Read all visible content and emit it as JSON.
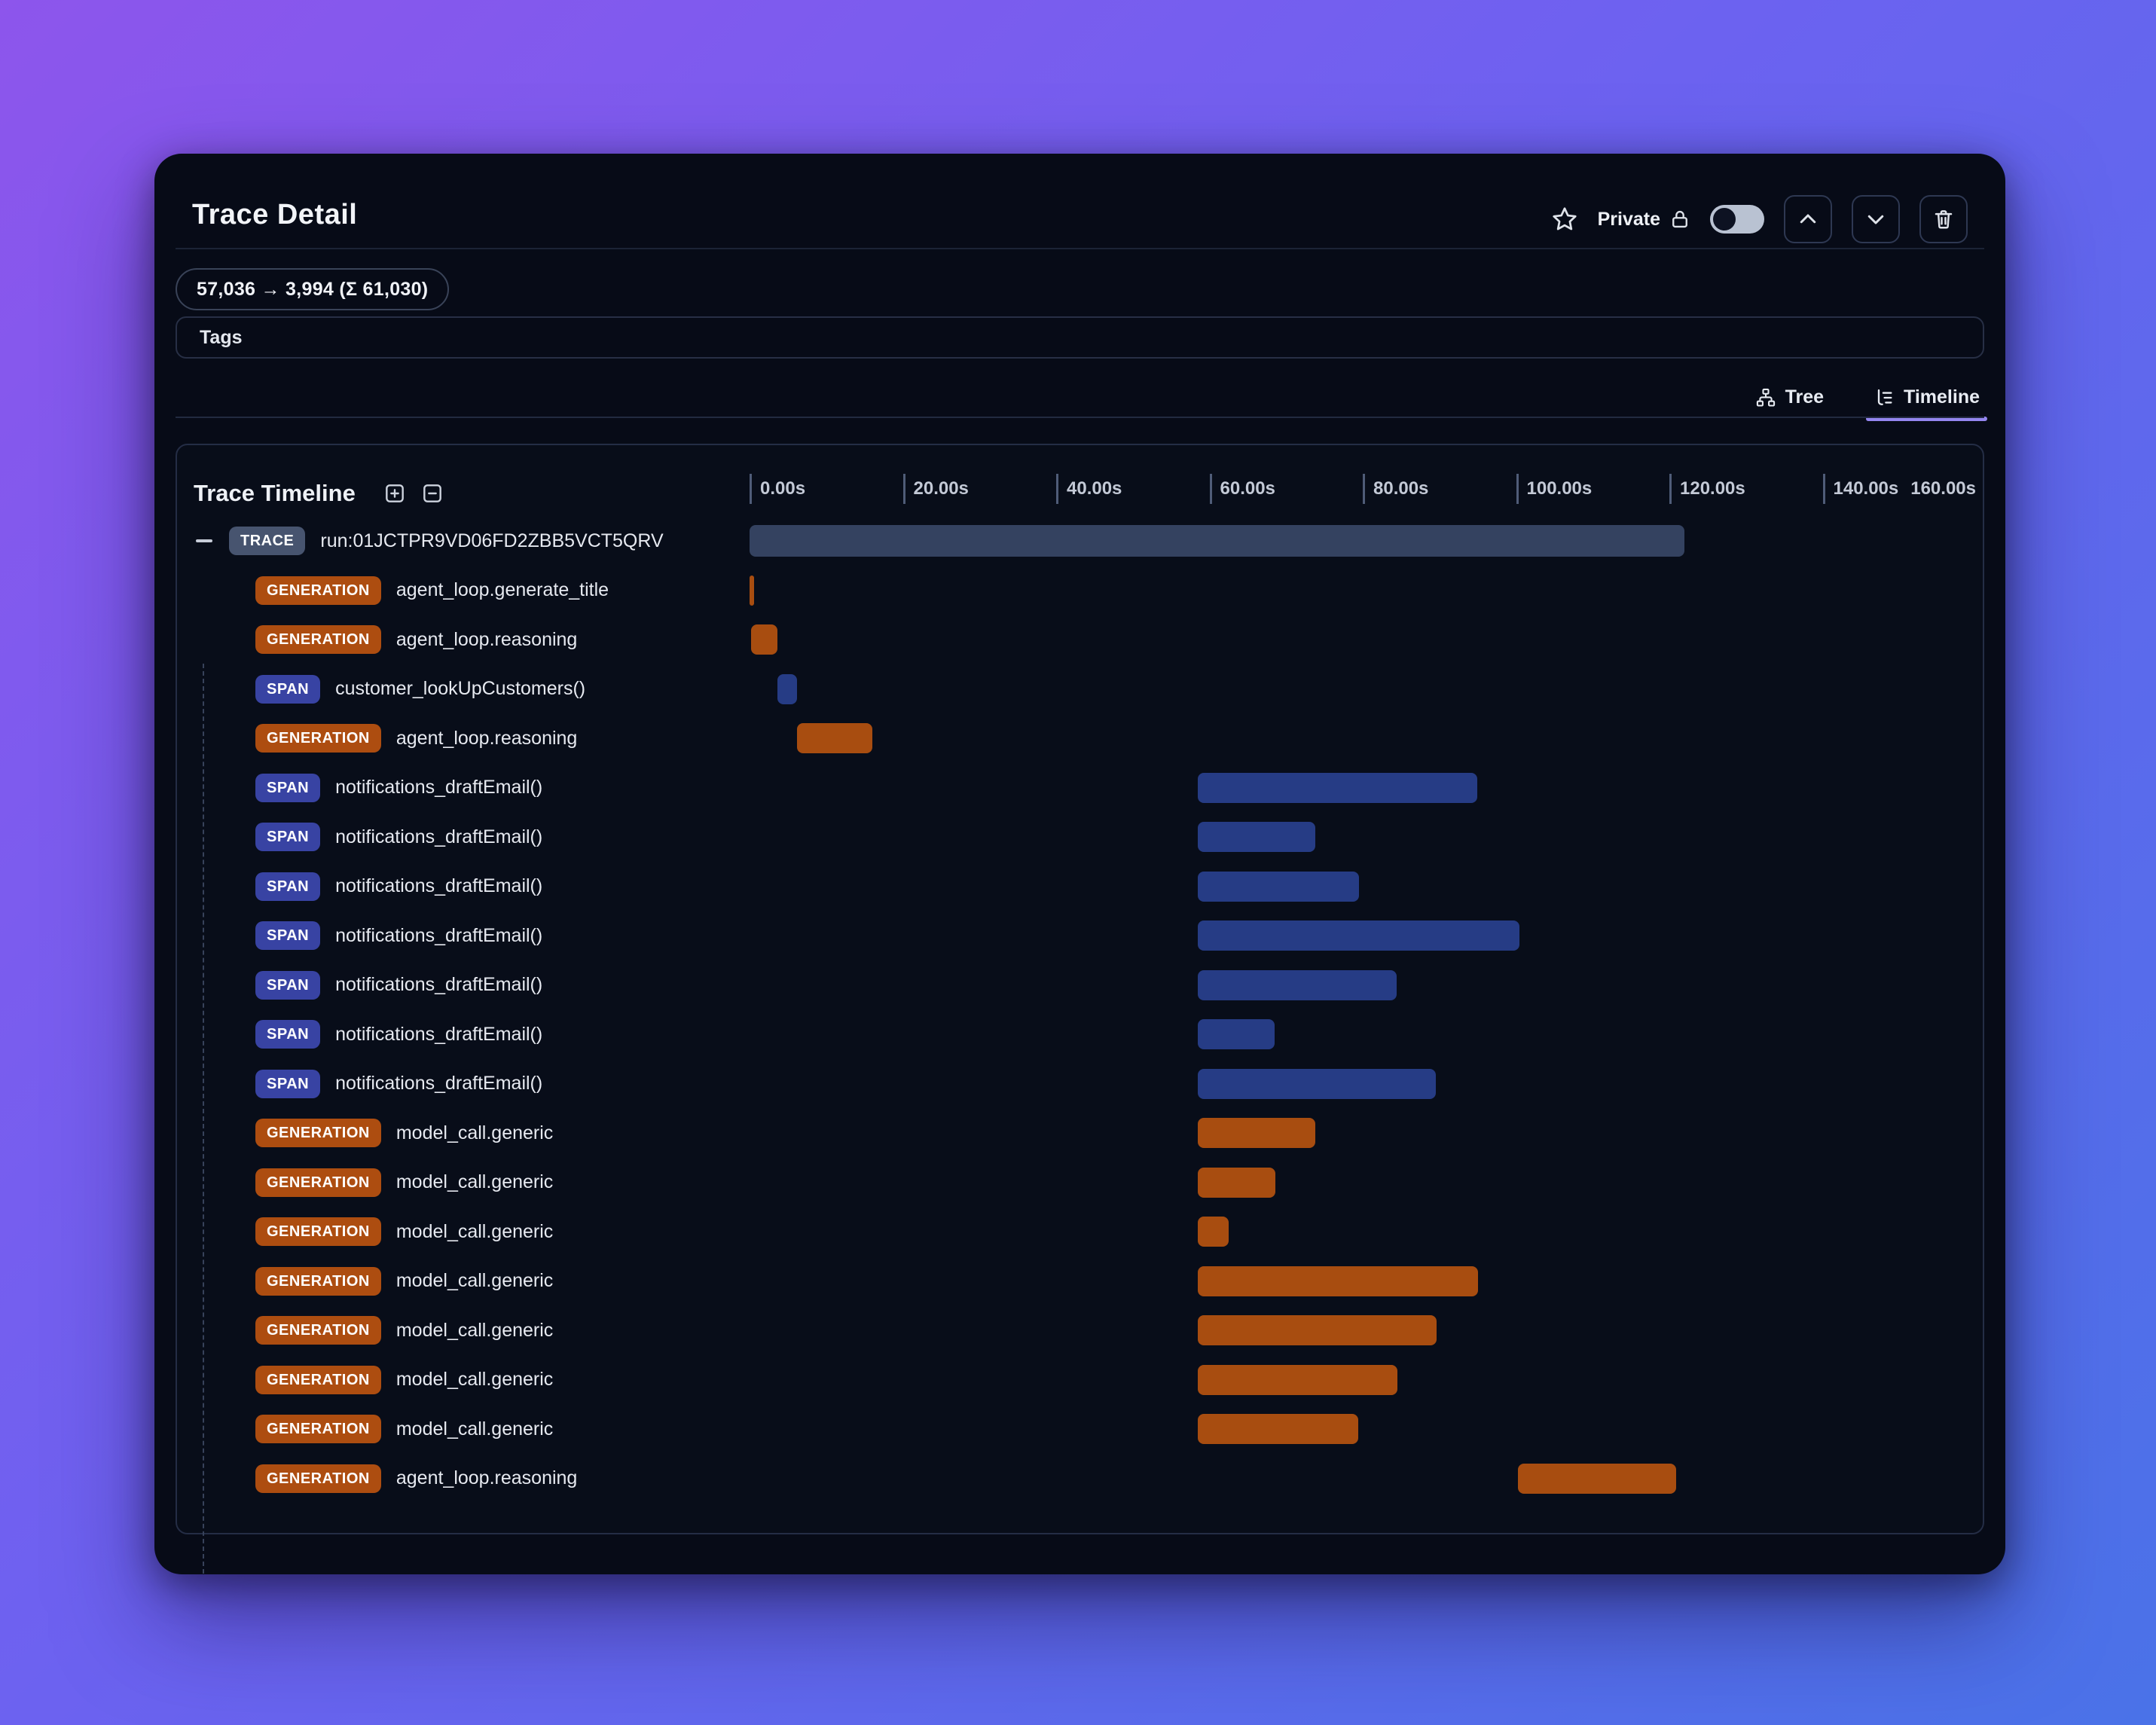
{
  "header": {
    "title": "Trace Detail",
    "token_usage": "57,036 → 3,994 (Σ 61,030)",
    "privacy_label": "Private",
    "icons": [
      "star-icon",
      "lock-icon",
      "chevron-up-icon",
      "chevron-down-icon",
      "trash-icon"
    ]
  },
  "tags": {
    "label": "Tags"
  },
  "view_tabs": [
    {
      "label": "Tree",
      "icon": "tree-icon",
      "active": false
    },
    {
      "label": "Timeline",
      "icon": "timeline-icon",
      "active": true
    }
  ],
  "timeline_panel": {
    "title": "Trace Timeline",
    "controls": [
      "expand-all-icon",
      "collapse-all-icon"
    ],
    "axis": {
      "max_seconds": 160,
      "tick_interval_seconds": 20,
      "tick_labels": [
        "0.00s",
        "20.00s",
        "40.00s",
        "60.00s",
        "80.00s",
        "100.00s",
        "120.00s",
        "140.00s"
      ],
      "end_label": "160.00s"
    },
    "rows": [
      {
        "type": "TRACE",
        "label": "run:01JCTPR9VD06FD2ZBB5VCT5QRV",
        "start": 0,
        "duration": 122.0,
        "has_toggle": true
      },
      {
        "type": "GENERATION",
        "label": "agent_loop.generate_title",
        "start": 0,
        "duration": 0.6
      },
      {
        "type": "GENERATION",
        "label": "agent_loop.reasoning",
        "start": 0.2,
        "duration": 3.4
      },
      {
        "type": "SPAN",
        "label": "customer_lookUpCustomers()",
        "start": 3.6,
        "duration": 2.6
      },
      {
        "type": "GENERATION",
        "label": "agent_loop.reasoning",
        "start": 6.2,
        "duration": 9.8
      },
      {
        "type": "SPAN",
        "label": "notifications_draftEmail()",
        "start": 58.5,
        "duration": 36.4
      },
      {
        "type": "SPAN",
        "label": "notifications_draftEmail()",
        "start": 58.5,
        "duration": 15.3
      },
      {
        "type": "SPAN",
        "label": "notifications_draftEmail()",
        "start": 58.5,
        "duration": 21.0
      },
      {
        "type": "SPAN",
        "label": "notifications_draftEmail()",
        "start": 58.5,
        "duration": 41.9
      },
      {
        "type": "SPAN",
        "label": "notifications_draftEmail()",
        "start": 58.5,
        "duration": 25.9
      },
      {
        "type": "SPAN",
        "label": "notifications_draftEmail()",
        "start": 58.5,
        "duration": 10.0
      },
      {
        "type": "SPAN",
        "label": "notifications_draftEmail()",
        "start": 58.5,
        "duration": 31.0
      },
      {
        "type": "GENERATION",
        "label": "model_call.generic",
        "start": 58.5,
        "duration": 15.3
      },
      {
        "type": "GENERATION",
        "label": "model_call.generic",
        "start": 58.5,
        "duration": 10.1
      },
      {
        "type": "GENERATION",
        "label": "model_call.generic",
        "start": 58.5,
        "duration": 4.0
      },
      {
        "type": "GENERATION",
        "label": "model_call.generic",
        "start": 58.5,
        "duration": 36.5
      },
      {
        "type": "GENERATION",
        "label": "model_call.generic",
        "start": 58.5,
        "duration": 31.1
      },
      {
        "type": "GENERATION",
        "label": "model_call.generic",
        "start": 58.5,
        "duration": 26.0
      },
      {
        "type": "GENERATION",
        "label": "model_call.generic",
        "start": 58.5,
        "duration": 20.9
      },
      {
        "type": "GENERATION",
        "label": "agent_loop.reasoning",
        "start": 100.2,
        "duration": 20.7
      }
    ]
  },
  "colors": {
    "background_gradient_from": "#8d55ec",
    "background_gradient_to": "#4a72e8",
    "trace_badge": "#47546f",
    "trace_bar": "#344260",
    "generation_badge": "#ad4d10",
    "generation_bar": "#a84d10",
    "span_badge": "#3843a3",
    "span_bar": "#263c85",
    "tab_active_underline": "#9486f0"
  }
}
